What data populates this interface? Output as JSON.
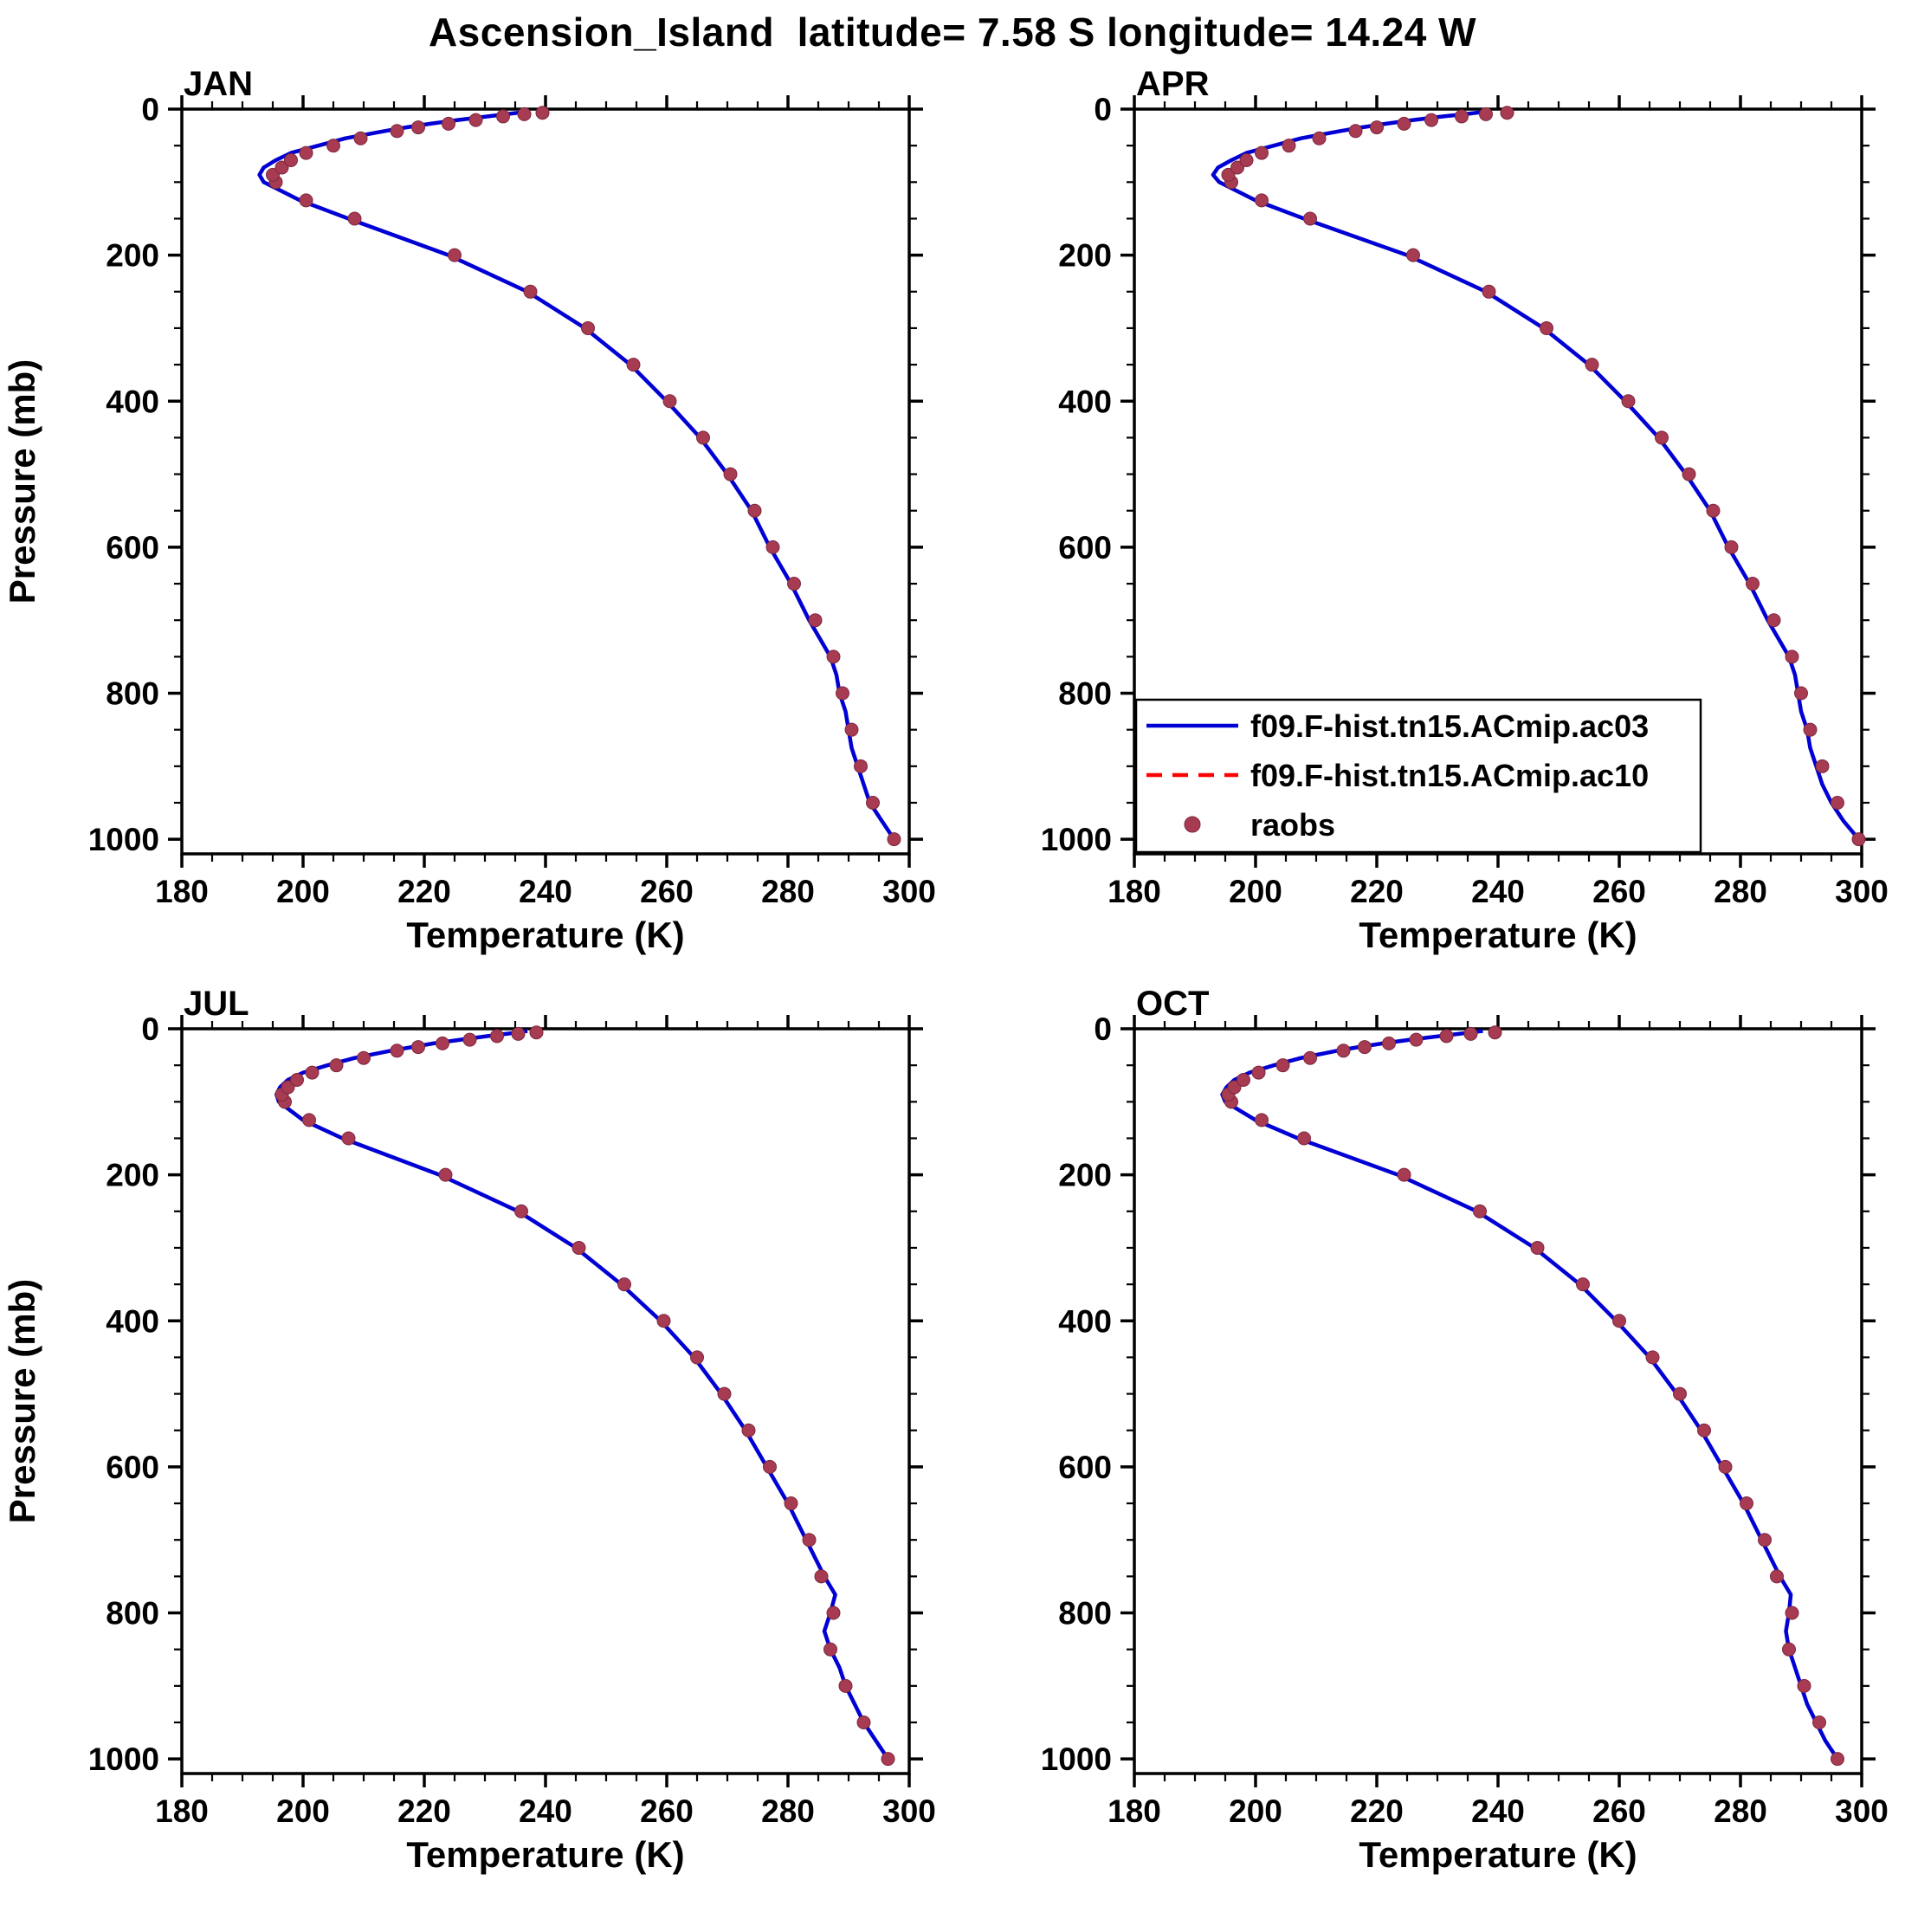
{
  "page": {
    "title": "Ascension_Island  latitude= 7.58 S longitude= 14.24 W"
  },
  "axes": {
    "x_label": "Temperature (K)",
    "y_label": "Pressure (mb)",
    "x_domain": [
      180,
      300
    ],
    "y_domain": [
      0,
      1020
    ],
    "x_tick_labels": [
      180,
      200,
      220,
      240,
      260,
      280,
      300
    ],
    "x_minor_step": 5,
    "y_tick_labels": [
      0,
      200,
      400,
      600,
      800,
      1000
    ],
    "y_minor_step": 50,
    "y_axis_inverted_note": "pressure decreases upward, 0 mb at top"
  },
  "style": {
    "model_line_color": "#0000D5",
    "model_line2_color": "#FF0000",
    "obs_color": "#A73B52",
    "obs_edge_color": "#7D2840",
    "frame_color": "#000000"
  },
  "legend": {
    "entries": [
      {
        "label": "f09.F-hist.tn15.ACmip.ac03",
        "type": "line",
        "color": "#0000D5",
        "dash": "solid"
      },
      {
        "label": "f09.F-hist.tn15.ACmip.ac10",
        "type": "line",
        "color": "#FF0000",
        "dash": "dashed"
      },
      {
        "label": "raobs",
        "type": "marker",
        "color": "#A73B52",
        "dash": "none"
      }
    ]
  },
  "chart_data": [
    {
      "type": "line",
      "month": "JAN",
      "show_ylabel": true,
      "show_legend": false,
      "model_line": {
        "name": "f09.F-hist.tn15.ACmip.ac03",
        "pressure": [
          1000,
          975,
          950,
          925,
          900,
          875,
          850,
          825,
          800,
          775,
          750,
          700,
          650,
          600,
          550,
          500,
          450,
          400,
          350,
          300,
          250,
          200,
          150,
          125,
          100,
          90,
          80,
          70,
          60,
          50,
          40,
          30,
          25,
          20,
          15,
          10,
          7,
          5,
          3
        ],
        "temperature": [
          297.5,
          295.5,
          293.5,
          292.5,
          291.5,
          290.5,
          290.0,
          289.5,
          288.5,
          288.0,
          287.0,
          283.5,
          280.5,
          277.0,
          274.0,
          270.0,
          265.5,
          260.0,
          254.0,
          246.5,
          237.0,
          224.0,
          207.5,
          199.5,
          193.5,
          192.8,
          193.5,
          195.5,
          198.0,
          202.5,
          207.0,
          213.5,
          217.0,
          221.0,
          225.5,
          230.5,
          233.5,
          235.5,
          237.0
        ]
      },
      "model_line_2": {
        "name": "f09.F-hist.tn15.ACmip.ac10",
        "note": "dashed red curve, overlaps ac03 (hidden beneath blue line)"
      },
      "raobs": {
        "pressure": [
          1000,
          950,
          900,
          850,
          800,
          750,
          700,
          650,
          600,
          550,
          500,
          450,
          400,
          350,
          300,
          250,
          200,
          150,
          125,
          100,
          90,
          80,
          70,
          60,
          50,
          40,
          30,
          25,
          20,
          15,
          10,
          7,
          5
        ],
        "temperature": [
          297.5,
          294.0,
          292.0,
          290.5,
          289.0,
          287.5,
          284.5,
          281.0,
          277.5,
          274.5,
          270.5,
          266.0,
          260.5,
          254.5,
          247.0,
          237.5,
          225.0,
          208.5,
          200.5,
          195.5,
          195.0,
          196.5,
          198.0,
          200.5,
          205.0,
          209.5,
          215.5,
          219.0,
          224.0,
          228.5,
          233.0,
          236.5,
          239.5
        ]
      }
    },
    {
      "type": "line",
      "month": "APR",
      "show_ylabel": false,
      "show_legend": true,
      "model_line": {
        "name": "f09.F-hist.tn15.ACmip.ac03",
        "pressure": [
          1000,
          975,
          950,
          925,
          900,
          875,
          850,
          825,
          800,
          775,
          750,
          700,
          650,
          600,
          550,
          500,
          450,
          400,
          350,
          300,
          250,
          200,
          150,
          125,
          100,
          90,
          80,
          70,
          60,
          50,
          40,
          30,
          25,
          20,
          15,
          10,
          7,
          5,
          3
        ],
        "temperature": [
          299.5,
          297.0,
          295.0,
          293.5,
          292.5,
          291.5,
          291.0,
          290.0,
          289.5,
          289.0,
          288.0,
          284.5,
          281.5,
          278.0,
          275.0,
          271.0,
          266.5,
          261.0,
          255.0,
          247.5,
          238.0,
          225.0,
          208.0,
          200.0,
          194.0,
          193.0,
          193.8,
          196.0,
          198.5,
          203.0,
          207.5,
          214.0,
          217.5,
          221.5,
          226.0,
          231.0,
          234.5,
          236.5,
          238.5
        ]
      },
      "model_line_2": {
        "name": "f09.F-hist.tn15.ACmip.ac10",
        "note": "dashed red curve, overlaps ac03 (hidden beneath blue line)"
      },
      "raobs": {
        "pressure": [
          1000,
          950,
          900,
          850,
          800,
          750,
          700,
          650,
          600,
          550,
          500,
          450,
          400,
          350,
          300,
          250,
          200,
          150,
          125,
          100,
          90,
          80,
          70,
          60,
          50,
          40,
          30,
          25,
          20,
          15,
          10,
          7,
          5
        ],
        "temperature": [
          299.5,
          296.0,
          293.5,
          291.5,
          290.0,
          288.5,
          285.5,
          282.0,
          278.5,
          275.5,
          271.5,
          267.0,
          261.5,
          255.5,
          248.0,
          238.5,
          226.0,
          209.0,
          201.0,
          196.0,
          195.5,
          197.0,
          198.5,
          201.0,
          205.5,
          210.5,
          216.5,
          220.0,
          224.5,
          229.0,
          234.0,
          238.0,
          241.5
        ]
      }
    },
    {
      "type": "line",
      "month": "JUL",
      "show_ylabel": true,
      "show_legend": false,
      "model_line": {
        "name": "f09.F-hist.tn15.ACmip.ac03",
        "pressure": [
          1000,
          975,
          950,
          925,
          900,
          875,
          850,
          825,
          800,
          775,
          750,
          700,
          650,
          600,
          550,
          500,
          450,
          400,
          350,
          300,
          250,
          200,
          150,
          125,
          100,
          90,
          80,
          70,
          60,
          50,
          40,
          30,
          25,
          20,
          15,
          10,
          7,
          5,
          3
        ],
        "temperature": [
          296.5,
          294.5,
          292.5,
          291.0,
          289.5,
          288.5,
          287.0,
          286.0,
          287.0,
          287.8,
          286.0,
          283.0,
          280.0,
          276.5,
          273.0,
          269.0,
          264.5,
          259.0,
          252.5,
          245.0,
          235.5,
          222.5,
          206.5,
          200.0,
          196.0,
          195.6,
          196.2,
          197.5,
          200.0,
          204.0,
          208.5,
          214.5,
          218.0,
          221.5,
          226.0,
          230.5,
          233.5,
          235.5,
          237.0
        ]
      },
      "model_line_2": {
        "name": "f09.F-hist.tn15.ACmip.ac10",
        "note": "dashed red curve, overlaps ac03 (hidden beneath blue line)"
      },
      "raobs": {
        "pressure": [
          1000,
          950,
          900,
          850,
          800,
          750,
          700,
          650,
          600,
          550,
          500,
          450,
          400,
          350,
          300,
          250,
          200,
          150,
          125,
          100,
          90,
          80,
          70,
          60,
          50,
          40,
          30,
          25,
          20,
          15,
          10,
          7,
          5
        ],
        "temperature": [
          296.5,
          292.5,
          289.5,
          287.0,
          287.5,
          285.5,
          283.5,
          280.5,
          277.0,
          273.5,
          269.5,
          265.0,
          259.5,
          253.0,
          245.5,
          236.0,
          223.5,
          207.5,
          201.0,
          197.0,
          196.5,
          197.5,
          199.0,
          201.5,
          205.5,
          210.0,
          215.5,
          219.0,
          223.0,
          227.5,
          232.0,
          235.5,
          238.5
        ]
      }
    },
    {
      "type": "line",
      "month": "OCT",
      "show_ylabel": false,
      "show_legend": false,
      "model_line": {
        "name": "f09.F-hist.tn15.ACmip.ac03",
        "pressure": [
          1000,
          975,
          950,
          925,
          900,
          875,
          850,
          825,
          800,
          775,
          750,
          700,
          650,
          600,
          550,
          500,
          450,
          400,
          350,
          300,
          250,
          200,
          150,
          125,
          100,
          90,
          80,
          70,
          60,
          50,
          40,
          30,
          25,
          20,
          15,
          10,
          7,
          5,
          3
        ],
        "temperature": [
          296.0,
          294.0,
          292.5,
          291.0,
          290.0,
          289.0,
          288.0,
          287.5,
          288.0,
          288.3,
          286.5,
          283.5,
          280.5,
          277.0,
          273.5,
          269.5,
          265.0,
          259.5,
          253.5,
          246.0,
          236.5,
          223.5,
          207.0,
          200.0,
          195.0,
          194.5,
          195.2,
          196.5,
          199.0,
          203.0,
          207.5,
          213.5,
          217.0,
          221.0,
          225.5,
          230.5,
          233.5,
          235.5,
          237.5
        ]
      },
      "model_line_2": {
        "name": "f09.F-hist.tn15.ACmip.ac10",
        "note": "dashed red curve, overlaps ac03 (hidden beneath blue line)"
      },
      "raobs": {
        "pressure": [
          1000,
          950,
          900,
          850,
          800,
          750,
          700,
          650,
          600,
          550,
          500,
          450,
          400,
          350,
          300,
          250,
          200,
          150,
          125,
          100,
          90,
          80,
          70,
          60,
          50,
          40,
          30,
          25,
          20,
          15,
          10,
          7,
          5
        ],
        "temperature": [
          296.0,
          293.0,
          290.5,
          288.0,
          288.5,
          286.0,
          284.0,
          281.0,
          277.5,
          274.0,
          270.0,
          265.5,
          260.0,
          254.0,
          246.5,
          237.0,
          224.5,
          208.0,
          201.0,
          196.0,
          195.5,
          196.5,
          198.0,
          200.5,
          204.5,
          209.0,
          214.5,
          218.0,
          222.0,
          226.5,
          231.5,
          235.5,
          239.5
        ]
      }
    }
  ]
}
